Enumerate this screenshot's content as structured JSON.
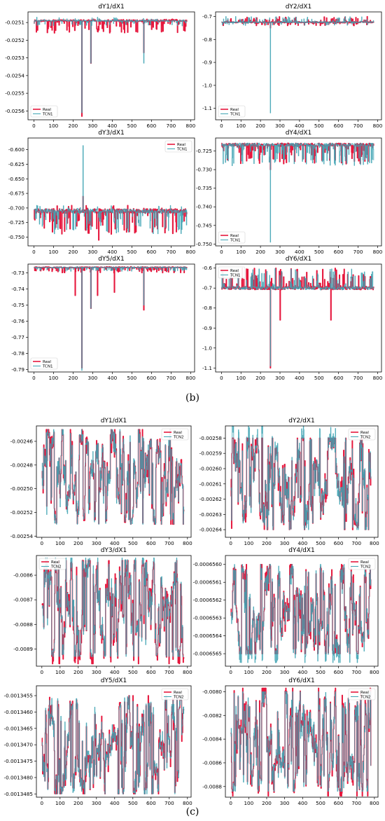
{
  "figure": {
    "panel_b_label": "(b)",
    "panel_c_label": "(c)"
  },
  "chart_data": [
    {
      "type": "line",
      "panel": "b",
      "title": "dY1/dX1",
      "legend": [
        "Real",
        "TCN1"
      ],
      "legend_position": "bottom-left",
      "xlim": [
        -30,
        820
      ],
      "ylim": [
        -0.02565,
        -0.02504
      ],
      "xticks": [
        0,
        100,
        200,
        300,
        400,
        500,
        600,
        700,
        800
      ],
      "yticks": [
        -0.0251,
        -0.0252,
        -0.0253,
        -0.0254,
        -0.0255,
        -0.0256
      ],
      "ytick_labels": [
        "-0.0251",
        "-0.0252",
        "-0.0253",
        "-0.0254",
        "-0.0255",
        "-0.0256"
      ],
      "series": [
        {
          "name": "Real",
          "color": "#e6173d",
          "style": "band",
          "base": -0.02509,
          "min": -0.02516,
          "max": -0.02508,
          "spikes": [
            [
              245,
              -0.02563
            ],
            [
              290,
              -0.02533
            ],
            [
              560,
              -0.02527
            ]
          ]
        },
        {
          "name": "TCN1",
          "color": "#3da3b3",
          "style": "band",
          "base": -0.02509,
          "min": -0.02512,
          "max": -0.02507,
          "spikes": [
            [
              245,
              -0.02561
            ],
            [
              290,
              -0.02533
            ],
            [
              560,
              -0.02533
            ]
          ]
        }
      ]
    },
    {
      "type": "line",
      "panel": "b",
      "title": "dY2/dX1",
      "legend": [
        "Real",
        "TCN1"
      ],
      "legend_position": "bottom-left",
      "xlim": [
        -30,
        820
      ],
      "ylim": [
        -1.15,
        -0.68
      ],
      "xticks": [
        0,
        100,
        200,
        300,
        400,
        500,
        600,
        700,
        800
      ],
      "yticks": [
        -0.7,
        -0.8,
        -0.9,
        -1.0,
        -1.1
      ],
      "ytick_labels": [
        "-0.7",
        "-0.8",
        "-0.9",
        "-1.0",
        "-1.1"
      ],
      "series": [
        {
          "name": "Real",
          "color": "#e6173d",
          "style": "band",
          "base": -0.725,
          "min": -0.74,
          "max": -0.7,
          "spikes": [
            [
              250,
              -0.75
            ]
          ]
        },
        {
          "name": "TCN1",
          "color": "#3da3b3",
          "style": "band",
          "base": -0.725,
          "min": -0.74,
          "max": -0.7,
          "spikes": [
            [
              250,
              -1.12
            ]
          ]
        }
      ]
    },
    {
      "type": "line",
      "panel": "b",
      "title": "dY3/dX1",
      "legend": [
        "Real",
        "TCN1"
      ],
      "legend_position": "top-right",
      "xlim": [
        -30,
        820
      ],
      "ylim": [
        -0.765,
        -0.58
      ],
      "xticks": [
        0,
        100,
        200,
        300,
        400,
        500,
        600,
        700,
        800
      ],
      "yticks": [
        -0.6,
        -0.625,
        -0.65,
        -0.675,
        -0.7,
        -0.725,
        -0.75
      ],
      "ytick_labels": [
        "-0.600",
        "-0.625",
        "-0.650",
        "-0.675",
        "-0.700",
        "-0.725",
        "-0.750"
      ],
      "series": [
        {
          "name": "Real",
          "color": "#e6173d",
          "style": "band",
          "base": -0.705,
          "min": -0.745,
          "max": -0.695,
          "spikes": [
            [
              250,
              -0.68
            ],
            [
              330,
              -0.755
            ]
          ]
        },
        {
          "name": "TCN1",
          "color": "#3da3b3",
          "style": "band",
          "base": -0.705,
          "min": -0.745,
          "max": -0.695,
          "spikes": [
            [
              250,
              -0.593
            ]
          ]
        }
      ]
    },
    {
      "type": "line",
      "panel": "b",
      "title": "dY4/dX1",
      "legend": [
        "Real",
        "TCN1"
      ],
      "legend_position": "bottom-left",
      "xlim": [
        -30,
        820
      ],
      "ylim": [
        -0.7505,
        -0.7215
      ],
      "xticks": [
        0,
        100,
        200,
        300,
        400,
        500,
        600,
        700,
        800
      ],
      "yticks": [
        -0.725,
        -0.73,
        -0.735,
        -0.74,
        -0.745,
        -0.75
      ],
      "ytick_labels": [
        "-0.725",
        "-0.730",
        "-0.735",
        "-0.740",
        "-0.745",
        "-0.750"
      ],
      "series": [
        {
          "name": "Real",
          "color": "#e6173d",
          "style": "band",
          "base": -0.7233,
          "min": -0.7285,
          "max": -0.723,
          "spikes": [
            [
              250,
              -0.73
            ]
          ]
        },
        {
          "name": "TCN1",
          "color": "#3da3b3",
          "style": "band",
          "base": -0.7233,
          "min": -0.729,
          "max": -0.723,
          "spikes": [
            [
              250,
              -0.7495
            ]
          ]
        }
      ]
    },
    {
      "type": "line",
      "panel": "b",
      "title": "dY5/dX1",
      "legend": [
        "Real",
        "TCN1"
      ],
      "legend_position": "bottom-left",
      "xlim": [
        -30,
        820
      ],
      "ylim": [
        -0.7915,
        -0.7245
      ],
      "xticks": [
        0,
        100,
        200,
        300,
        400,
        500,
        600,
        700,
        800
      ],
      "yticks": [
        -0.73,
        -0.74,
        -0.75,
        -0.76,
        -0.77,
        -0.78,
        -0.79
      ],
      "ytick_labels": [
        "-0.73",
        "-0.74",
        "-0.75",
        "-0.76",
        "-0.77",
        "-0.78",
        "-0.79"
      ],
      "series": [
        {
          "name": "Real",
          "color": "#e6173d",
          "style": "band",
          "base": -0.7265,
          "min": -0.73,
          "max": -0.726,
          "spikes": [
            [
              210,
              -0.744
            ],
            [
              245,
              -0.789
            ],
            [
              290,
              -0.752
            ],
            [
              325,
              -0.744
            ],
            [
              410,
              -0.742
            ],
            [
              560,
              -0.753
            ]
          ]
        },
        {
          "name": "TCN1",
          "color": "#3da3b3",
          "style": "band",
          "base": -0.7265,
          "min": -0.729,
          "max": -0.726,
          "spikes": [
            [
              245,
              -0.7905
            ],
            [
              290,
              -0.752
            ],
            [
              560,
              -0.75
            ]
          ]
        }
      ]
    },
    {
      "type": "line",
      "panel": "b",
      "title": "dY6/dX1",
      "legend": [
        "Real",
        "TCN1"
      ],
      "legend_position": "top-left",
      "xlim": [
        -30,
        820
      ],
      "ylim": [
        -1.12,
        -0.58
      ],
      "xticks": [
        0,
        100,
        200,
        300,
        400,
        500,
        600,
        700,
        800
      ],
      "yticks": [
        -0.6,
        -0.7,
        -0.8,
        -0.9,
        -1.0,
        -1.1
      ],
      "ytick_labels": [
        "-0.6",
        "-0.7",
        "-0.8",
        "-0.9",
        "-1.0",
        "-1.1"
      ],
      "series": [
        {
          "name": "Real",
          "color": "#e6173d",
          "style": "band",
          "base": -0.7,
          "min": -0.71,
          "max": -0.6,
          "spikes": [
            [
              250,
              -1.1
            ],
            [
              300,
              -0.86
            ],
            [
              560,
              -0.86
            ]
          ]
        },
        {
          "name": "TCN1",
          "color": "#3da3b3",
          "style": "band",
          "base": -0.7,
          "min": -0.71,
          "max": -0.6,
          "spikes": [
            [
              250,
              -1.09
            ]
          ]
        }
      ]
    },
    {
      "type": "line",
      "panel": "c",
      "title": "dY1/dX1",
      "legend": [
        "Real",
        "TCN2"
      ],
      "legend_position": "top-right",
      "xlim": [
        -30,
        820
      ],
      "ylim": [
        -0.002541,
        -0.002447
      ],
      "xticks": [
        0,
        100,
        200,
        300,
        400,
        500,
        600,
        700,
        800
      ],
      "yticks": [
        -0.00246,
        -0.00248,
        -0.0025,
        -0.00252,
        -0.00254
      ],
      "ytick_labels": [
        "-0.00246",
        "-0.00248",
        "-0.00250",
        "-0.00252",
        "-0.00254"
      ],
      "series": [
        {
          "name": "Real",
          "color": "#e6173d",
          "style": "osc",
          "min": -0.00253,
          "max": -0.00245
        },
        {
          "name": "TCN2",
          "color": "#3da3b3",
          "style": "osc",
          "min": -0.00253,
          "max": -0.00245
        }
      ]
    },
    {
      "type": "line",
      "panel": "c",
      "title": "dY2/dX1",
      "legend": [
        "Real",
        "TCN2"
      ],
      "legend_position": "top-right",
      "xlim": [
        -30,
        820
      ],
      "ylim": [
        -0.002645,
        -0.002572
      ],
      "xticks": [
        0,
        100,
        200,
        300,
        400,
        500,
        600,
        700,
        800
      ],
      "yticks": [
        -0.00258,
        -0.00259,
        -0.0026,
        -0.00261,
        -0.00262,
        -0.00263,
        -0.00264
      ],
      "ytick_labels": [
        "-0.00258",
        "-0.00259",
        "-0.00260",
        "-0.00261",
        "-0.00262",
        "-0.00263",
        "-0.00264"
      ],
      "series": [
        {
          "name": "Real",
          "color": "#e6173d",
          "style": "osc",
          "min": -0.00264,
          "max": -0.00258
        },
        {
          "name": "TCN2",
          "color": "#3da3b3",
          "style": "osc",
          "min": -0.00264,
          "max": -0.00257
        }
      ]
    },
    {
      "type": "line",
      "panel": "c",
      "title": "dY3/dX1",
      "legend": [
        "Real",
        "TCN2"
      ],
      "legend_position": "top-left",
      "xlim": [
        -30,
        820
      ],
      "ylim": [
        -0.00897,
        -0.00852
      ],
      "xticks": [
        0,
        100,
        200,
        300,
        400,
        500,
        600,
        700,
        800
      ],
      "yticks": [
        -0.0086,
        -0.0087,
        -0.0088,
        -0.0089
      ],
      "ytick_labels": [
        "-0.0086",
        "-0.0087",
        "-0.0088",
        "-0.0089"
      ],
      "series": [
        {
          "name": "Real",
          "color": "#e6173d",
          "style": "osc",
          "min": -0.00896,
          "max": -0.00854
        },
        {
          "name": "TCN2",
          "color": "#3da3b3",
          "style": "osc",
          "min": -0.00893,
          "max": -0.00853
        }
      ]
    },
    {
      "type": "line",
      "panel": "c",
      "title": "dY4/dX1",
      "legend": [
        "Real",
        "TCN2"
      ],
      "legend_position": "top-right",
      "xlim": [
        -30,
        820
      ],
      "ylim": [
        -0.00065657,
        -0.00065595
      ],
      "xticks": [
        0,
        100,
        200,
        300,
        400,
        500,
        600,
        700,
        800
      ],
      "yticks": [
        -0.000656,
        -0.0006561,
        -0.0006562,
        -0.0006563,
        -0.0006564,
        -0.0006565
      ],
      "ytick_labels": [
        "-0.0006560",
        "-0.0006561",
        "-0.0006562",
        "-0.0006563",
        "-0.0006564",
        "-0.0006565"
      ],
      "series": [
        {
          "name": "Real",
          "color": "#e6173d",
          "style": "osc",
          "min": -0.0006565,
          "max": -0.000656
        },
        {
          "name": "TCN2",
          "color": "#3da3b3",
          "style": "osc",
          "min": -0.00065655,
          "max": -0.000656
        }
      ]
    },
    {
      "type": "line",
      "panel": "c",
      "title": "dY5/dX1",
      "legend": [
        "Real",
        "TCN2"
      ],
      "legend_position": "top-right",
      "xlim": [
        -30,
        820
      ],
      "ylim": [
        -0.0013486,
        -0.0013452
      ],
      "xticks": [
        0,
        100,
        200,
        300,
        400,
        500,
        600,
        700,
        800
      ],
      "yticks": [
        -0.0013455,
        -0.001346,
        -0.0013465,
        -0.001347,
        -0.0013475,
        -0.001348,
        -0.0013485
      ],
      "ytick_labels": [
        "-0.0013455",
        "-0.0013460",
        "-0.0013465",
        "-0.0013470",
        "-0.0013475",
        "-0.0013480",
        "-0.0013485"
      ],
      "series": [
        {
          "name": "Real",
          "color": "#e6173d",
          "style": "osc",
          "min": -0.0013485,
          "max": -0.0013455
        },
        {
          "name": "TCN2",
          "color": "#3da3b3",
          "style": "osc",
          "min": -0.0013485,
          "max": -0.0013455
        }
      ]
    },
    {
      "type": "line",
      "panel": "c",
      "title": "dY6/dX1",
      "legend": [
        "Real",
        "TCN2"
      ],
      "legend_position": "top-right",
      "xlim": [
        -30,
        820
      ],
      "ylim": [
        -0.00889,
        -0.00795
      ],
      "xticks": [
        0,
        100,
        200,
        300,
        400,
        500,
        600,
        700,
        800
      ],
      "yticks": [
        -0.008,
        -0.0082,
        -0.0084,
        -0.0086,
        -0.0088
      ],
      "ytick_labels": [
        "-0.0080",
        "-0.0082",
        "-0.0084",
        "-0.0086",
        "-0.0088"
      ],
      "series": [
        {
          "name": "Real",
          "color": "#e6173d",
          "style": "osc",
          "min": -0.00888,
          "max": -0.00797
        },
        {
          "name": "TCN2",
          "color": "#3da3b3",
          "style": "osc",
          "min": -0.00884,
          "max": -0.008
        }
      ]
    }
  ]
}
